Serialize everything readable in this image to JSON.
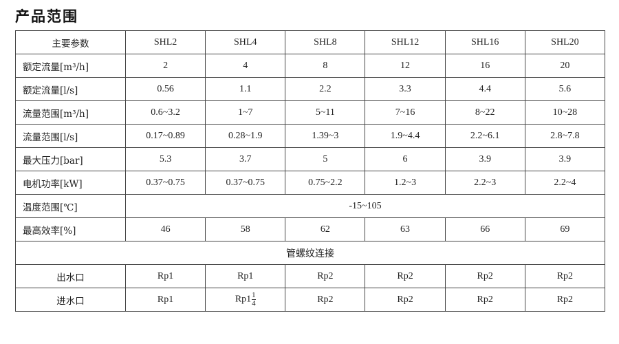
{
  "title": "产品范围",
  "table": {
    "header": {
      "label": "主要参数",
      "models": [
        "SHL2",
        "SHL4",
        "SHL8",
        "SHL12",
        "SHL16",
        "SHL20"
      ]
    },
    "rows": [
      {
        "label": "额定流量[m³/h]",
        "values": [
          "2",
          "4",
          "8",
          "12",
          "16",
          "20"
        ]
      },
      {
        "label": "额定流量[l/s]",
        "values": [
          "0.56",
          "1.1",
          "2.2",
          "3.3",
          "4.4",
          "5.6"
        ]
      },
      {
        "label": "流量范围[m³/h]",
        "values": [
          "0.6~3.2",
          "1~7",
          "5~11",
          "7~16",
          "8~22",
          "10~28"
        ]
      },
      {
        "label": "流量范围[l/s]",
        "values": [
          "0.17~0.89",
          "0.28~1.9",
          "1.39~3",
          "1.9~4.4",
          "2.2~6.1",
          "2.8~7.8"
        ]
      },
      {
        "label": "最大压力[bar]",
        "values": [
          "5.3",
          "3.7",
          "5",
          "6",
          "3.9",
          "3.9"
        ]
      },
      {
        "label": "电机功率[kW]",
        "values": [
          "0.37~0.75",
          "0.37~0.75",
          "0.75~2.2",
          "1.2~3",
          "2.2~3",
          "2.2~4"
        ]
      }
    ],
    "temperature": {
      "label": "温度范围[℃]",
      "value": "-15~105"
    },
    "efficiency": {
      "label": "最高效率[%]",
      "values": [
        "46",
        "58",
        "62",
        "63",
        "66",
        "69"
      ]
    },
    "connection_header": "管螺纹连接",
    "outlet": {
      "label": "出水口",
      "values": [
        "Rp1",
        "Rp1",
        "Rp2",
        "Rp2",
        "Rp2",
        "Rp2"
      ]
    },
    "inlet": {
      "label": "进水口",
      "values": [
        "Rp1",
        "Rp1",
        "Rp2",
        "Rp2",
        "Rp2",
        "Rp2"
      ],
      "fraction_on_second": {
        "num": "1",
        "den": "4"
      }
    }
  }
}
